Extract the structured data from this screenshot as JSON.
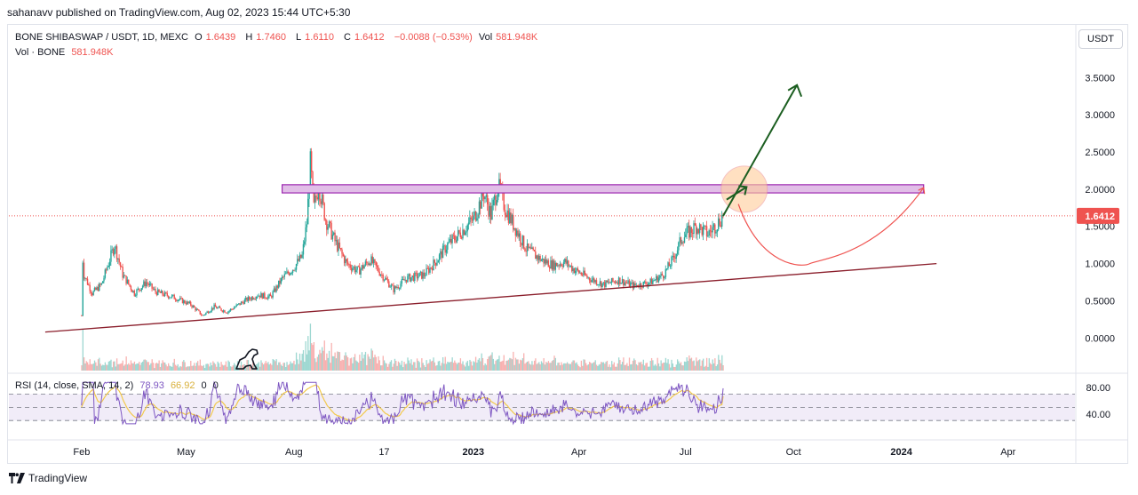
{
  "header": {
    "published": "sahanavv published on TradingView.com, Aug 02, 2023 15:44 UTC+5:30"
  },
  "legend": {
    "symbol": "BONE SHIBASWAP / USDT, 1D, MEXC",
    "o_label": "O",
    "o_value": "1.6439",
    "h_label": "H",
    "h_value": "1.7460",
    "l_label": "L",
    "l_value": "1.6110",
    "c_label": "C",
    "c_value": "1.6412",
    "change": "−0.0088 (−0.53%)",
    "vol_label": "Vol",
    "vol_value": "581.948K",
    "vol_line_label": "Vol · BONE",
    "vol_line_value": "581.948K"
  },
  "rsi_legend": {
    "label": "RSI (14, close, SMA, 14, 2)",
    "rsi_value": "78.93",
    "sma_value": "66.92",
    "extra1": "0",
    "extra2": "0"
  },
  "currency_button": "USDT",
  "brand": "TradingView",
  "colors": {
    "up": "#26a69a",
    "down": "#ef5350",
    "rsi": "#7e57c2",
    "rsi_sma": "#f2c94c",
    "resistance_fill": "#e1bee7",
    "resistance_stroke": "#9c27b0",
    "trendline": "#8b1f2c",
    "arrow": "#1b5e20",
    "path_arrow": "#ef5350",
    "price_label_bg": "#ef5350",
    "circle_fill": "#ffcc99"
  },
  "chart_data": {
    "type": "candlestick",
    "symbol": "BONE SHIBASWAP / USDT",
    "interval": "1D",
    "exchange": "MEXC",
    "y_axis_labels": [
      "3.5000",
      "3.0000",
      "2.5000",
      "2.0000",
      "1.5000",
      "1.0000",
      "0.5000",
      "0.0000"
    ],
    "y_range": [
      -0.45,
      3.85
    ],
    "x_axis_labels": [
      "Feb",
      "May",
      "Aug",
      "17",
      "2023",
      "Apr",
      "Jul",
      "Oct",
      "2024",
      "Apr"
    ],
    "last_price": "1.6412",
    "price_path": [
      [
        "2022-02-01",
        0.3
      ],
      [
        "2022-02-01",
        1.25
      ],
      [
        "2022-02-03",
        0.85
      ],
      [
        "2022-02-10",
        0.6
      ],
      [
        "2022-02-18",
        0.72
      ],
      [
        "2022-03-01",
        1.25
      ],
      [
        "2022-03-08",
        0.85
      ],
      [
        "2022-03-18",
        0.6
      ],
      [
        "2022-03-28",
        0.75
      ],
      [
        "2022-04-05",
        0.62
      ],
      [
        "2022-04-20",
        0.55
      ],
      [
        "2022-05-05",
        0.45
      ],
      [
        "2022-05-15",
        0.3
      ],
      [
        "2022-05-25",
        0.42
      ],
      [
        "2022-06-05",
        0.35
      ],
      [
        "2022-06-20",
        0.5
      ],
      [
        "2022-07-01",
        0.58
      ],
      [
        "2022-07-12",
        0.55
      ],
      [
        "2022-07-22",
        0.8
      ],
      [
        "2022-08-01",
        0.95
      ],
      [
        "2022-08-08",
        1.1
      ],
      [
        "2022-08-12",
        1.55
      ],
      [
        "2022-08-15",
        2.35
      ],
      [
        "2022-08-18",
        1.75
      ],
      [
        "2022-08-22",
        2.05
      ],
      [
        "2022-08-28",
        1.6
      ],
      [
        "2022-09-05",
        1.3
      ],
      [
        "2022-09-15",
        1.0
      ],
      [
        "2022-09-25",
        0.9
      ],
      [
        "2022-10-05",
        1.05
      ],
      [
        "2022-10-15",
        0.85
      ],
      [
        "2022-10-25",
        0.65
      ],
      [
        "2022-11-05",
        0.8
      ],
      [
        "2022-11-20",
        0.85
      ],
      [
        "2022-12-01",
        1.05
      ],
      [
        "2022-12-10",
        1.25
      ],
      [
        "2022-12-20",
        1.4
      ],
      [
        "2023-01-01",
        1.6
      ],
      [
        "2023-01-10",
        1.95
      ],
      [
        "2023-01-16",
        1.65
      ],
      [
        "2023-01-22",
        2.05
      ],
      [
        "2023-01-28",
        1.75
      ],
      [
        "2023-02-05",
        1.5
      ],
      [
        "2023-02-15",
        1.2
      ],
      [
        "2023-02-28",
        1.05
      ],
      [
        "2023-03-10",
        0.98
      ],
      [
        "2023-03-20",
        1.02
      ],
      [
        "2023-03-28",
        0.92
      ],
      [
        "2023-04-10",
        0.8
      ],
      [
        "2023-04-22",
        0.72
      ],
      [
        "2023-05-05",
        0.78
      ],
      [
        "2023-05-18",
        0.7
      ],
      [
        "2023-06-01",
        0.75
      ],
      [
        "2023-06-12",
        0.85
      ],
      [
        "2023-06-20",
        1.05
      ],
      [
        "2023-06-28",
        1.35
      ],
      [
        "2023-07-10",
        1.5
      ],
      [
        "2023-07-20",
        1.4
      ],
      [
        "2023-07-27",
        1.52
      ],
      [
        "2023-08-02",
        1.6412
      ]
    ],
    "rsi_axis_labels": [
      "80.00",
      "40.00"
    ],
    "rsi_range": [
      10,
      95
    ],
    "rsi_last": 78.93,
    "rsi_sma_last": 66.92,
    "resistance_zone": {
      "from": 1.95,
      "to": 2.06,
      "start": "2022-07-22",
      "end": "2024-01-20"
    },
    "support_trendline": {
      "start": [
        "2022-01-01",
        0.08
      ],
      "end": [
        "2024-01-31",
        1.0
      ]
    },
    "projection_arrow": {
      "start": [
        "2023-08-02",
        1.64
      ],
      "end": [
        "2023-10-04",
        3.4
      ]
    },
    "pullback_path": [
      [
        "2023-08-15",
        1.8
      ],
      [
        "2023-10-15",
        1.0
      ],
      [
        "2023-12-10",
        1.1
      ],
      [
        "2024-01-20",
        2.02
      ]
    ]
  }
}
